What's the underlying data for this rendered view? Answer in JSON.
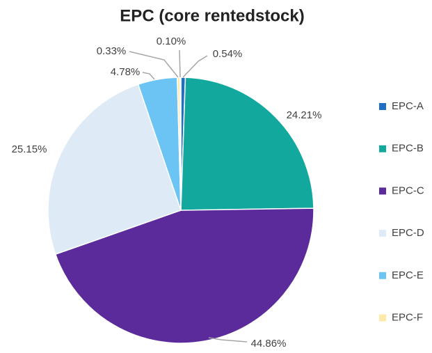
{
  "chart_data": {
    "type": "pie",
    "title": "EPC (core rentedstock)",
    "categories": [
      "EPC-A",
      "EPC-B",
      "EPC-C",
      "EPC-D",
      "EPC-E",
      "EPC-F",
      null
    ],
    "values": [
      0.54,
      24.21,
      44.86,
      25.15,
      4.78,
      0.33,
      0.1
    ],
    "value_labels": [
      "0.54%",
      "24.21%",
      "44.86%",
      "25.15%",
      "4.78%",
      "0.33%",
      "0.10%"
    ],
    "colors": [
      "#1f6fc4",
      "#13a89e",
      "#5b2a9b",
      "#deebf7",
      "#6cc4f5",
      "#fde9a8",
      "#e6d9a8"
    ],
    "legend": "right"
  }
}
